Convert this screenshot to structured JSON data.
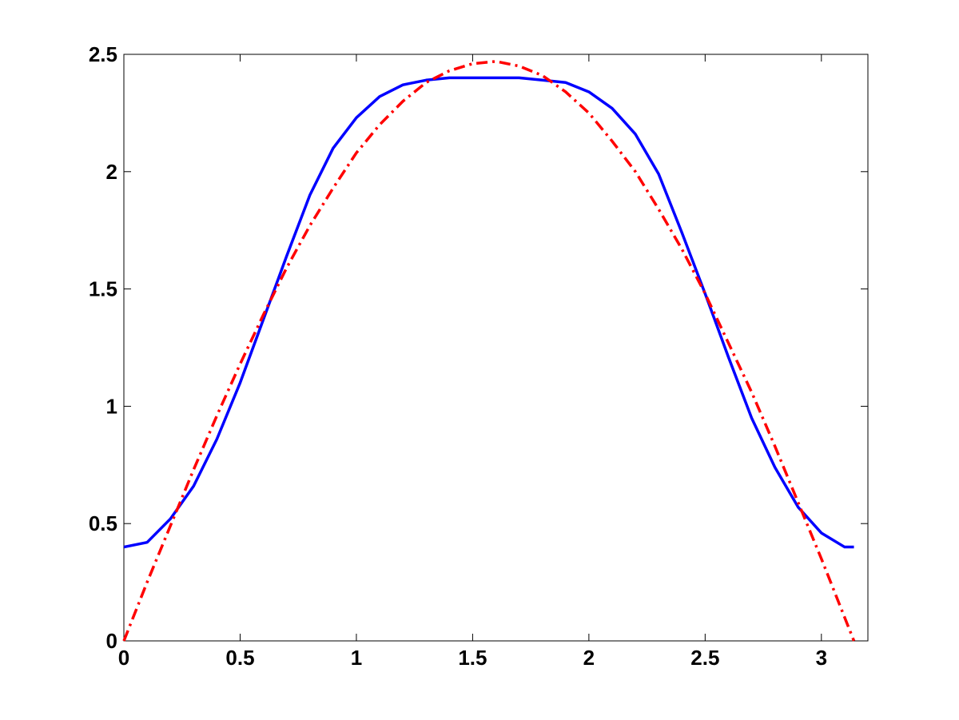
{
  "chart_data": {
    "type": "line",
    "x": [
      0,
      0.1,
      0.2,
      0.3,
      0.4,
      0.5,
      0.6,
      0.7,
      0.8,
      0.9,
      1.0,
      1.1,
      1.2,
      1.3,
      1.4,
      1.5,
      1.6,
      1.7,
      1.8,
      1.9,
      2.0,
      2.1,
      2.2,
      2.3,
      2.4,
      2.5,
      2.6,
      2.7,
      2.8,
      2.9,
      3.0,
      3.1,
      3.14
    ],
    "series": [
      {
        "color": "#0000ff",
        "linestyle": "-",
        "values": [
          0.4,
          0.42,
          0.52,
          0.66,
          0.86,
          1.1,
          1.37,
          1.64,
          1.9,
          2.1,
          2.23,
          2.32,
          2.37,
          2.39,
          2.4,
          2.4,
          2.4,
          2.4,
          2.39,
          2.38,
          2.34,
          2.27,
          2.16,
          1.99,
          1.74,
          1.48,
          1.21,
          0.95,
          0.74,
          0.57,
          0.46,
          0.4,
          0.4
        ]
      },
      {
        "color": "#ff0000",
        "linestyle": "-.",
        "values": [
          0,
          0.25,
          0.49,
          0.73,
          0.96,
          1.18,
          1.39,
          1.59,
          1.77,
          1.93,
          2.08,
          2.2,
          2.3,
          2.38,
          2.43,
          2.46,
          2.47,
          2.45,
          2.41,
          2.34,
          2.25,
          2.13,
          2.0,
          1.84,
          1.67,
          1.48,
          1.27,
          1.06,
          0.83,
          0.59,
          0.35,
          0.1,
          0
        ]
      }
    ],
    "xlim": [
      0,
      3.2
    ],
    "ylim": [
      0,
      2.5
    ],
    "xticks": [
      0,
      0.5,
      1,
      1.5,
      2,
      2.5,
      3
    ],
    "yticks": [
      0,
      0.5,
      1,
      1.5,
      2,
      2.5
    ],
    "grid": false
  }
}
